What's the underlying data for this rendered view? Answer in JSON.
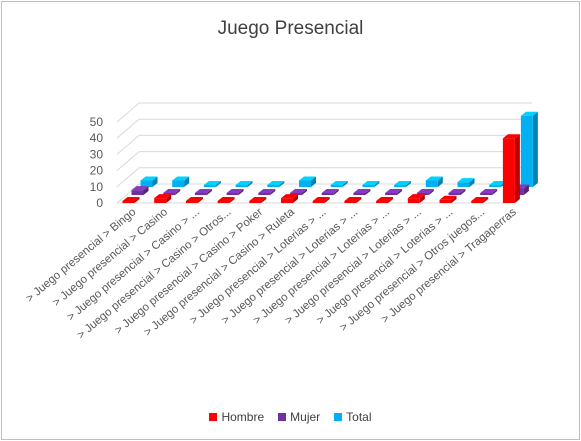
{
  "chart_data": {
    "type": "bar",
    "title": "Juego Presencial",
    "categories": [
      "> Juego presencial > Bingo",
      "> Juego presencial > Casino",
      "> Juego presencial > Casino > ...",
      "> Juego presencial > Casino > Otros...",
      "> Juego presencial > Casino > Poker",
      "> Juego presencial > Casino > Ruleta",
      "> Juego presencial > Loterias > ...",
      "> Juego presencial > Loterias > ...",
      "> Juego presencial > Loterias > ...",
      "> Juego presencial > Loterias > ...",
      "> Juego presencial > Loterias > ...",
      "> Juego presencial > Otros juegos...",
      "> Juego presencial > Tragaperras"
    ],
    "series": [
      {
        "name": "Hombre",
        "color": "#ff0000",
        "values": [
          1,
          3,
          0,
          0,
          0,
          3,
          0,
          0,
          0,
          3,
          2,
          0,
          40
        ]
      },
      {
        "name": "Mujer",
        "color": "#7030a0",
        "values": [
          3,
          1,
          1,
          1,
          1,
          1,
          1,
          1,
          1,
          1,
          1,
          1,
          4
        ]
      },
      {
        "name": "Total",
        "color": "#00b0f0",
        "values": [
          4,
          4,
          1,
          1,
          1,
          4,
          1,
          1,
          1,
          4,
          3,
          1,
          44
        ]
      }
    ],
    "yticks": [
      0,
      10,
      20,
      30,
      40,
      50
    ],
    "ylim": [
      0,
      50
    ],
    "grid": true,
    "legend_position": "bottom"
  }
}
